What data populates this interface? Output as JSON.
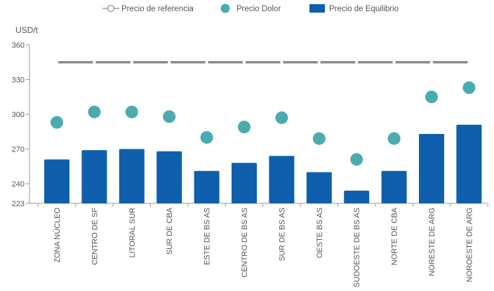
{
  "chart_data": {
    "type": "bar",
    "ylabel": "USD/t",
    "ylim": [
      223,
      360
    ],
    "yticks": [
      223,
      240,
      270,
      300,
      330,
      360
    ],
    "categories": [
      "ZONA NÚCLEO",
      "CENTRO DE SF",
      "LITORAL SUR",
      "SUR DE CBA",
      "ESTE DE BS AS",
      "CENTRO DE BS AS",
      "SUR DE BS AS",
      "OESTE BS AS",
      "SUDOESTE DE BS AS",
      "NORTE DE CBA",
      "NORESTE DE ARG",
      "NOROESTE DE ARG"
    ],
    "legend": [
      "Precio de referencia",
      "Precio Dolor",
      "Precio de Equilibrio"
    ],
    "series": [
      {
        "name": "Precio de referencia",
        "kind": "line",
        "color": "#8c8c8c",
        "values": [
          345,
          345,
          345,
          345,
          345,
          345,
          345,
          345,
          345,
          345,
          345,
          345
        ]
      },
      {
        "name": "Precio Dolor",
        "kind": "dot",
        "color": "#4aabb1",
        "values": [
          293,
          302,
          302,
          298,
          280,
          289,
          297,
          279,
          261,
          279,
          315,
          323
        ]
      },
      {
        "name": "Precio de Equilibrio",
        "kind": "bar",
        "color": "#0f5fad",
        "values": [
          261,
          269,
          270,
          268,
          251,
          258,
          264,
          250,
          234,
          251,
          283,
          291
        ]
      }
    ],
    "legend_placement": "top",
    "grid": false
  }
}
